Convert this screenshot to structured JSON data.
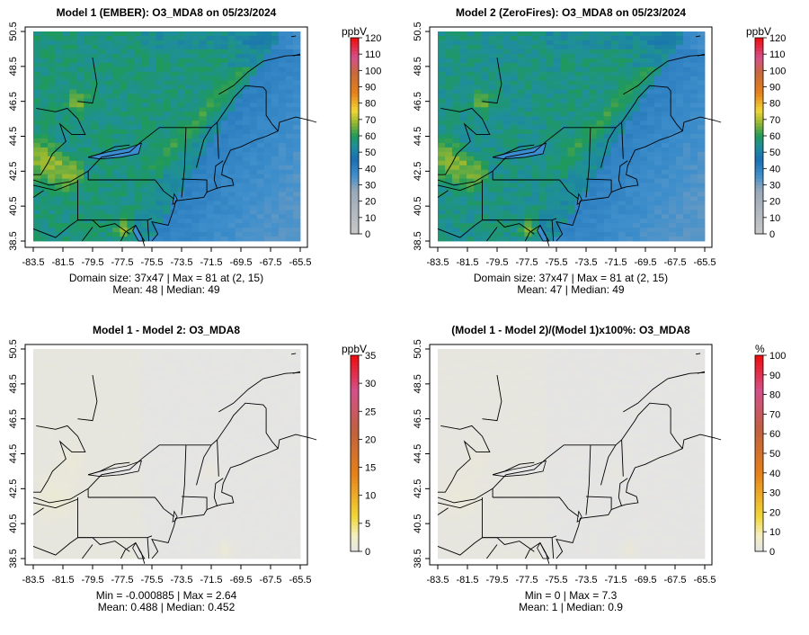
{
  "colors": {
    "scale_low": "#c8c8c8",
    "scale_blue": "#1a6fb3",
    "scale_green": "#1f9a5a",
    "scale_yellow": "#f2d635",
    "scale_orange": "#e6801a",
    "scale_pink": "#d4508a",
    "scale_red": "#f00c0c",
    "diff_gray": "#e4e4e4",
    "diff_yellow": "#efe6b8"
  },
  "panels": [
    {
      "id": "model1",
      "title": "Model 1 (EMBER): O3_MDA8 on 05/23/2024",
      "unit": "ppbV",
      "stats_line1": "Domain size: 37x47 | Max = 81 at (2, 15)",
      "stats_line2": "Mean: 48 |  Median: 49",
      "colorbar_ticks": [
        "0",
        "10",
        "20",
        "30",
        "40",
        "50",
        "60",
        "70",
        "80",
        "90",
        "100",
        "110",
        "120"
      ],
      "colorbar_max": 120,
      "kind": "abs",
      "mean": 48
    },
    {
      "id": "model2",
      "title": "Model 2 (ZeroFires): O3_MDA8 on 05/23/2024",
      "unit": "ppbV",
      "stats_line1": "Domain size: 37x47 | Max = 81 at (2, 15)",
      "stats_line2": "Mean: 47 |  Median: 49",
      "colorbar_ticks": [
        "0",
        "10",
        "20",
        "30",
        "40",
        "50",
        "60",
        "70",
        "80",
        "90",
        "100",
        "110",
        "120"
      ],
      "colorbar_max": 120,
      "kind": "abs",
      "mean": 47
    },
    {
      "id": "diff",
      "title": "Model 1 - Model 2: O3_MDA8",
      "unit": "ppbV",
      "stats_line1": "Min = -0.000885 | Max = 2.64",
      "stats_line2": "Mean: 0.488 |  Median: 0.452",
      "colorbar_ticks": [
        "0",
        "5",
        "10",
        "15",
        "20",
        "25",
        "30",
        "35"
      ],
      "colorbar_max": 35,
      "kind": "diff",
      "mean": 0.488
    },
    {
      "id": "pct",
      "title": "(Model 1 - Model 2)/(Model 1)x100%: O3_MDA8",
      "unit": "%",
      "stats_line1": "Min = 0 | Max = 7.3",
      "stats_line2": "Mean: 1 |  Median: 0.9",
      "colorbar_ticks": [
        "0",
        "10",
        "20",
        "30",
        "40",
        "50",
        "60",
        "70",
        "80",
        "90",
        "100"
      ],
      "colorbar_max": 100,
      "kind": "pct",
      "mean": 1
    }
  ],
  "chart_data": {
    "type": "heatmap",
    "x_ticks": [
      "-83.5",
      "-81.5",
      "-79.5",
      "-77.5",
      "-75.5",
      "-73.5",
      "-71.5",
      "-69.5",
      "-67.5",
      "-65.5"
    ],
    "y_ticks": [
      "38.5",
      "40.5",
      "42.5",
      "44.5",
      "46.5",
      "48.5",
      "50.5"
    ],
    "xlim": [
      -83.5,
      -65.5
    ],
    "ylim": [
      38.5,
      50.5
    ],
    "grid_size": [
      37,
      47
    ]
  }
}
